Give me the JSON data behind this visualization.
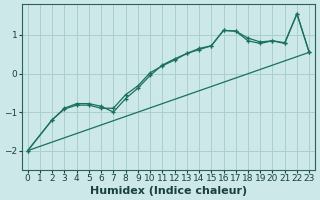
{
  "xlabel": "Humidex (Indice chaleur)",
  "xlim": [
    -0.5,
    23.5
  ],
  "ylim": [
    -2.5,
    1.8
  ],
  "background_color": "#cce8e8",
  "grid_color": "#aacfcf",
  "line_color": "#1a7060",
  "lines": [
    {
      "x": [
        0,
        23
      ],
      "y": [
        -2.0,
        0.55
      ],
      "marker": null,
      "lw": 0.9
    },
    {
      "x": [
        0,
        2,
        3,
        4,
        5,
        6,
        7,
        8,
        9,
        10,
        11,
        12,
        13,
        14,
        15,
        16,
        17,
        18,
        19,
        20,
        21,
        22,
        23
      ],
      "y": [
        -2.0,
        -1.2,
        -0.92,
        -0.82,
        -0.82,
        -0.9,
        -0.9,
        -0.55,
        -0.32,
        0.02,
        0.2,
        0.35,
        0.52,
        0.65,
        0.72,
        1.12,
        1.1,
        0.85,
        0.78,
        0.85,
        0.78,
        1.55,
        0.55
      ],
      "marker": "+",
      "lw": 0.9
    },
    {
      "x": [
        0,
        2,
        3,
        4,
        5,
        6,
        7,
        8,
        9,
        10,
        11,
        12,
        13,
        14,
        15,
        16,
        17,
        18,
        19,
        20,
        21,
        22,
        23
      ],
      "y": [
        -2.0,
        -1.2,
        -0.9,
        -0.78,
        -0.78,
        -0.85,
        -1.0,
        -0.65,
        -0.38,
        -0.05,
        0.22,
        0.38,
        0.52,
        0.62,
        0.72,
        1.12,
        1.1,
        0.92,
        0.82,
        0.85,
        0.8,
        1.55,
        0.55
      ],
      "marker": "+",
      "lw": 0.9
    }
  ],
  "xticks": [
    0,
    1,
    2,
    3,
    4,
    5,
    6,
    7,
    8,
    9,
    10,
    11,
    12,
    13,
    14,
    15,
    16,
    17,
    18,
    19,
    20,
    21,
    22,
    23
  ],
  "yticks": [
    -2,
    -1,
    0,
    1
  ],
  "tick_fontsize": 6.5,
  "xlabel_fontsize": 8
}
